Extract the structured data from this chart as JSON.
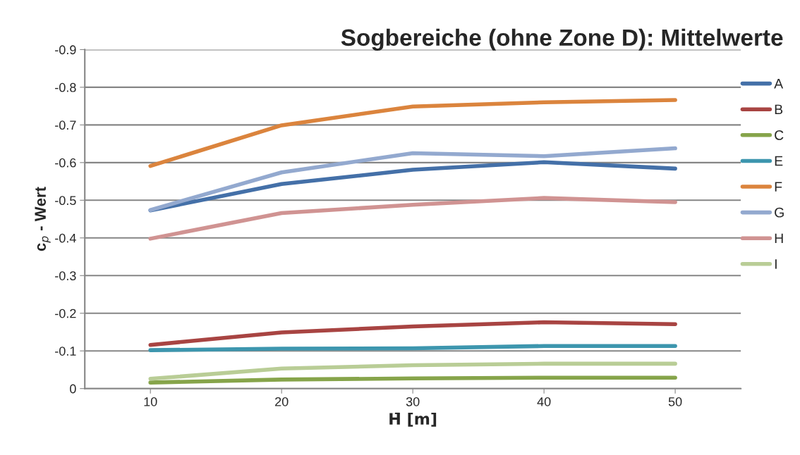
{
  "chart_data": {
    "type": "line",
    "title": "Sogbereiche (ohne Zone D): Mittelwerte",
    "xlabel": "H̄ [m]",
    "ylabel": "c$_{p}$ - Wert",
    "x": [
      10,
      20,
      30,
      40,
      50
    ],
    "xlim": [
      5,
      55
    ],
    "xticks": [
      10,
      20,
      30,
      40,
      50
    ],
    "ylim": [
      0,
      -0.9
    ],
    "yticks": [
      0,
      -0.1,
      -0.2,
      -0.3,
      -0.4,
      -0.5,
      -0.6,
      -0.7,
      -0.8,
      -0.9
    ],
    "grid": "y",
    "legend": "right",
    "marker": "none",
    "line_style": "solid",
    "series": [
      {
        "name": "A",
        "color": "#4470a8",
        "values": [
          -0.473,
          -0.543,
          -0.581,
          -0.601,
          -0.584
        ]
      },
      {
        "name": "B",
        "color": "#a84442",
        "values": [
          -0.116,
          -0.149,
          -0.165,
          -0.176,
          -0.171
        ]
      },
      {
        "name": "C",
        "color": "#86a44a",
        "values": [
          -0.016,
          -0.024,
          -0.027,
          -0.029,
          -0.029
        ]
      },
      {
        "name": "E",
        "color": "#3d96ae",
        "values": [
          -0.102,
          -0.106,
          -0.107,
          -0.113,
          -0.113
        ]
      },
      {
        "name": "F",
        "color": "#db843d",
        "values": [
          -0.591,
          -0.699,
          -0.749,
          -0.76,
          -0.766
        ]
      },
      {
        "name": "G",
        "color": "#93a9cf",
        "values": [
          -0.474,
          -0.574,
          -0.625,
          -0.617,
          -0.638
        ]
      },
      {
        "name": "H",
        "color": "#d09392",
        "values": [
          -0.398,
          -0.466,
          -0.488,
          -0.506,
          -0.495
        ]
      },
      {
        "name": "I",
        "color": "#b9cd96",
        "values": [
          -0.026,
          -0.053,
          -0.062,
          -0.066,
          -0.066
        ]
      }
    ]
  }
}
